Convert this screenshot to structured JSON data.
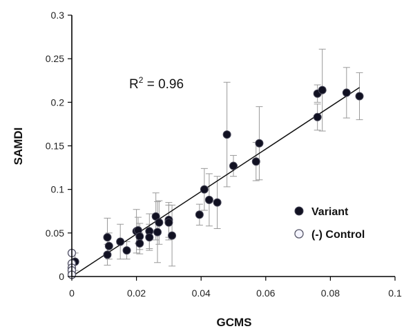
{
  "chart_data": {
    "type": "scatter",
    "xlabel": "GCMS",
    "ylabel": "SAMDI",
    "xlim": [
      0,
      0.1
    ],
    "ylim": [
      0,
      0.3
    ],
    "x_ticks": [
      0,
      0.02,
      0.04,
      0.06,
      0.08,
      0.1
    ],
    "x_tick_labels": [
      "0",
      "0.02",
      "0.04",
      "0.06",
      "0.08",
      "0.1"
    ],
    "y_ticks": [
      0,
      0.05,
      0.1,
      0.15,
      0.2,
      0.25,
      0.3
    ],
    "y_tick_labels": [
      "0",
      "0.05",
      "0.1",
      "0.15",
      "0.2",
      "0.25",
      "0.3"
    ],
    "grid": false,
    "annotation": {
      "prefix": "R",
      "sup": "2",
      "suffix": " = 0.96"
    },
    "trendline": {
      "x": [
        0,
        0.089
      ],
      "y": [
        0.0,
        0.217
      ]
    },
    "legend": {
      "placement": "right",
      "entries": [
        "Variant",
        "(-) Control"
      ]
    },
    "colors": {
      "variant": "#111122",
      "control": "#f4f4ff",
      "errorbar": "#999999",
      "axis": "#000000"
    },
    "series": [
      {
        "name": "Variant",
        "points": [
          {
            "x": 0.0,
            "y": 0.003,
            "err": 0.002
          },
          {
            "x": 0.001,
            "y": 0.017,
            "err": 0.01
          },
          {
            "x": 0.011,
            "y": 0.045,
            "err": 0.022
          },
          {
            "x": 0.011,
            "y": 0.025,
            "err": 0.012
          },
          {
            "x": 0.0115,
            "y": 0.035,
            "err": 0.015
          },
          {
            "x": 0.015,
            "y": 0.04,
            "err": 0.02
          },
          {
            "x": 0.017,
            "y": 0.03,
            "err": 0.01
          },
          {
            "x": 0.02,
            "y": 0.052,
            "err": 0.025
          },
          {
            "x": 0.0205,
            "y": 0.053,
            "err": 0.015
          },
          {
            "x": 0.021,
            "y": 0.046,
            "err": 0.015
          },
          {
            "x": 0.021,
            "y": 0.038,
            "err": 0.012
          },
          {
            "x": 0.024,
            "y": 0.052,
            "err": 0.02
          },
          {
            "x": 0.024,
            "y": 0.045,
            "err": 0.015
          },
          {
            "x": 0.026,
            "y": 0.069,
            "err": 0.027
          },
          {
            "x": 0.0265,
            "y": 0.051,
            "err": 0.035
          },
          {
            "x": 0.027,
            "y": 0.062,
            "err": 0.025
          },
          {
            "x": 0.03,
            "y": 0.065,
            "err": 0.02
          },
          {
            "x": 0.03,
            "y": 0.062,
            "err": 0.02
          },
          {
            "x": 0.031,
            "y": 0.047,
            "err": 0.035
          },
          {
            "x": 0.0395,
            "y": 0.071,
            "err": 0.012
          },
          {
            "x": 0.041,
            "y": 0.1,
            "err": 0.024
          },
          {
            "x": 0.0425,
            "y": 0.088,
            "err": 0.03
          },
          {
            "x": 0.045,
            "y": 0.085,
            "err": 0.03
          },
          {
            "x": 0.048,
            "y": 0.163,
            "err": 0.06
          },
          {
            "x": 0.05,
            "y": 0.127,
            "err": 0.012
          },
          {
            "x": 0.057,
            "y": 0.132,
            "err": 0.022
          },
          {
            "x": 0.058,
            "y": 0.153,
            "err": 0.042
          },
          {
            "x": 0.076,
            "y": 0.183,
            "err": 0.015
          },
          {
            "x": 0.076,
            "y": 0.21,
            "err": 0.01
          },
          {
            "x": 0.0775,
            "y": 0.214,
            "err": 0.047
          },
          {
            "x": 0.085,
            "y": 0.211,
            "err": 0.029
          },
          {
            "x": 0.089,
            "y": 0.207,
            "err": 0.027
          }
        ]
      },
      {
        "name": "(-) Control",
        "points": [
          {
            "x": 0.0,
            "y": 0.027,
            "err": 0.0
          },
          {
            "x": 0.0,
            "y": 0.015,
            "err": 0.0
          },
          {
            "x": 0.0,
            "y": 0.01,
            "err": 0.0
          },
          {
            "x": 0.0,
            "y": 0.007,
            "err": 0.0
          },
          {
            "x": 0.0,
            "y": 0.002,
            "err": 0.0
          }
        ]
      }
    ]
  }
}
